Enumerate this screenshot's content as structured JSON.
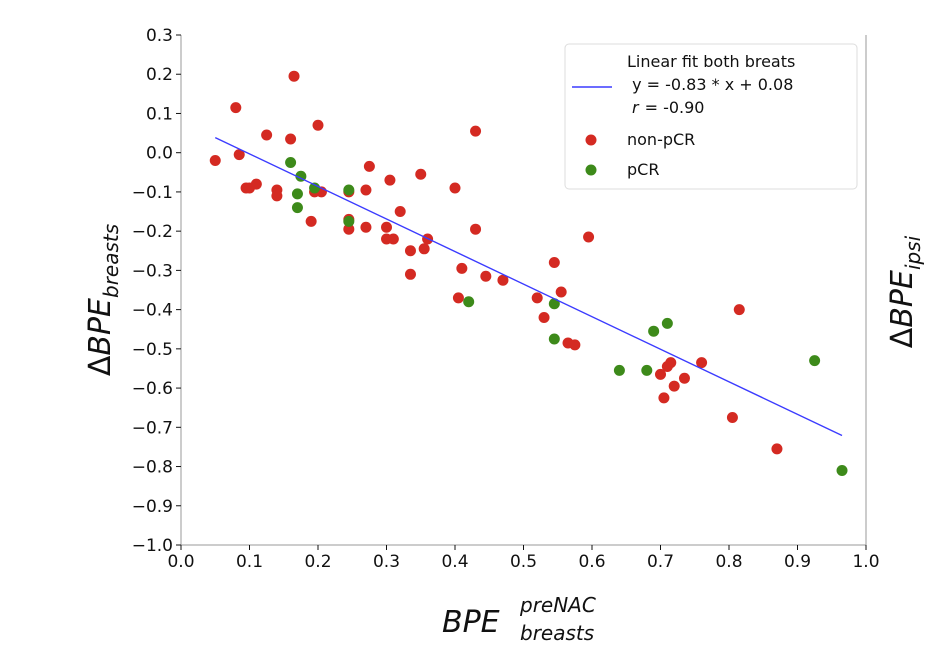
{
  "chart_data": {
    "type": "scatter",
    "xlabel": {
      "main": "BPE",
      "sup": "preNAC",
      "sub": "breasts"
    },
    "ylabel": {
      "delta": "Δ",
      "main": "BPE",
      "sub": "breasts"
    },
    "ylabel_right": {
      "delta": "Δ",
      "main": "BPE",
      "sub": "ipsi"
    },
    "xlim": [
      0.0,
      1.0
    ],
    "ylim": [
      -1.0,
      0.3
    ],
    "xticks": [
      "0.0",
      "0.1",
      "0.2",
      "0.3",
      "0.4",
      "0.5",
      "0.6",
      "0.7",
      "0.8",
      "0.9",
      "1.0"
    ],
    "yticks": [
      "0.3",
      "0.2",
      "0.1",
      "0.0",
      "−0.1",
      "−0.2",
      "−0.3",
      "−0.4",
      "−0.5",
      "−0.6",
      "−0.7",
      "−0.8",
      "−0.9",
      "−1.0"
    ],
    "fit_line": {
      "name": "Linear fit both breats",
      "equation": " y = -0.83 * x + 0.08",
      "r_text": "r",
      "r_value": "= -0.90",
      "slope": -0.83,
      "intercept": 0.08,
      "x_range": [
        0.05,
        0.965
      ],
      "color": "#3b3bff"
    },
    "legend_position": "upper-right",
    "series": [
      {
        "name": "non-pCR",
        "color": "#d42a22",
        "points": [
          [
            0.05,
            -0.02
          ],
          [
            0.08,
            0.115
          ],
          [
            0.085,
            -0.005
          ],
          [
            0.095,
            -0.09
          ],
          [
            0.1,
            -0.09
          ],
          [
            0.11,
            -0.08
          ],
          [
            0.125,
            0.045
          ],
          [
            0.14,
            -0.095
          ],
          [
            0.14,
            -0.11
          ],
          [
            0.16,
            0.035
          ],
          [
            0.165,
            0.195
          ],
          [
            0.19,
            -0.175
          ],
          [
            0.195,
            -0.1
          ],
          [
            0.2,
            0.07
          ],
          [
            0.205,
            -0.1
          ],
          [
            0.245,
            -0.17
          ],
          [
            0.245,
            -0.195
          ],
          [
            0.245,
            -0.1
          ],
          [
            0.27,
            -0.19
          ],
          [
            0.27,
            -0.095
          ],
          [
            0.275,
            -0.035
          ],
          [
            0.3,
            -0.19
          ],
          [
            0.3,
            -0.22
          ],
          [
            0.305,
            -0.07
          ],
          [
            0.31,
            -0.22
          ],
          [
            0.32,
            -0.15
          ],
          [
            0.335,
            -0.31
          ],
          [
            0.335,
            -0.25
          ],
          [
            0.35,
            -0.055
          ],
          [
            0.355,
            -0.245
          ],
          [
            0.36,
            -0.22
          ],
          [
            0.4,
            -0.09
          ],
          [
            0.405,
            -0.37
          ],
          [
            0.41,
            -0.295
          ],
          [
            0.43,
            0.055
          ],
          [
            0.43,
            -0.195
          ],
          [
            0.445,
            -0.315
          ],
          [
            0.47,
            -0.325
          ],
          [
            0.52,
            -0.37
          ],
          [
            0.53,
            -0.42
          ],
          [
            0.545,
            -0.28
          ],
          [
            0.555,
            -0.355
          ],
          [
            0.565,
            -0.485
          ],
          [
            0.575,
            -0.49
          ],
          [
            0.595,
            -0.215
          ],
          [
            0.7,
            -0.565
          ],
          [
            0.705,
            -0.625
          ],
          [
            0.71,
            -0.545
          ],
          [
            0.715,
            -0.535
          ],
          [
            0.72,
            -0.595
          ],
          [
            0.735,
            -0.575
          ],
          [
            0.76,
            -0.535
          ],
          [
            0.805,
            -0.675
          ],
          [
            0.815,
            -0.4
          ],
          [
            0.87,
            -0.755
          ]
        ]
      },
      {
        "name": "pCR",
        "color": "#3d8a1a",
        "points": [
          [
            0.16,
            -0.025
          ],
          [
            0.17,
            -0.105
          ],
          [
            0.17,
            -0.14
          ],
          [
            0.175,
            -0.06
          ],
          [
            0.195,
            -0.09
          ],
          [
            0.245,
            -0.095
          ],
          [
            0.245,
            -0.175
          ],
          [
            0.42,
            -0.38
          ],
          [
            0.545,
            -0.475
          ],
          [
            0.545,
            -0.385
          ],
          [
            0.64,
            -0.555
          ],
          [
            0.68,
            -0.555
          ],
          [
            0.69,
            -0.455
          ],
          [
            0.71,
            -0.435
          ],
          [
            0.925,
            -0.53
          ],
          [
            0.965,
            -0.81
          ]
        ]
      }
    ]
  }
}
